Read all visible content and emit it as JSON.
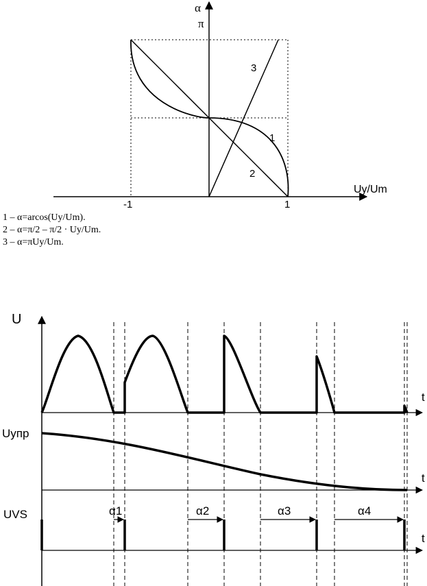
{
  "graph": {
    "axis_y_label": "α",
    "y_pi_label": "π",
    "axis_x_label": "Uy/Um",
    "tick_minus_one": "-1",
    "tick_one": "1",
    "curve_labels": [
      "1",
      "2",
      "3"
    ]
  },
  "legend": [
    "1 – α=arcos(Uy/Um).",
    "2 – α=π/2 – π/2 · Uy/Um.",
    "3 – α=πUy/Um."
  ],
  "timing": {
    "u_label": "U",
    "uupr_label": "Uупр",
    "uvs_label": "UVS",
    "t_label": "t",
    "alpha_labels": [
      "α1",
      "α2",
      "α3",
      "α4"
    ]
  },
  "colors": {
    "ink": "#000000",
    "background": "#ffffff"
  }
}
